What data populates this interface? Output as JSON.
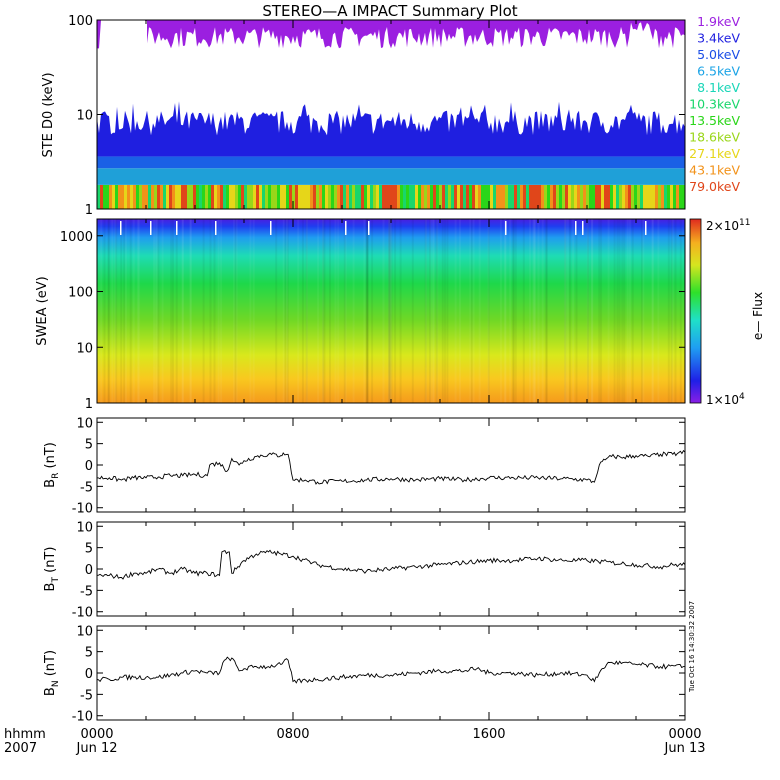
{
  "title": "STEREO—A IMPACT Summary Plot",
  "chart_data": [
    {
      "type": "heatmap",
      "name": "ste",
      "ylabel": "STE D0 (keV)",
      "yscale": "log",
      "ylim": [
        1,
        100
      ],
      "yticks": [
        {
          "v": 1,
          "label": "1"
        },
        {
          "v": 10,
          "label": "10"
        },
        {
          "v": 100,
          "label": "100"
        }
      ],
      "channels": [
        {
          "label": "1.9keV",
          "energy_keV": 1.9,
          "color": "#9b1fe0"
        },
        {
          "label": "3.4keV",
          "energy_keV": 3.4,
          "color": "#1f1fe0"
        },
        {
          "label": "5.0keV",
          "energy_keV": 5.0,
          "color": "#1a4de6"
        },
        {
          "label": "6.5keV",
          "energy_keV": 6.5,
          "color": "#1aa3e6"
        },
        {
          "label": "8.1keV",
          "energy_keV": 8.1,
          "color": "#19d6b8"
        },
        {
          "label": "10.3keV",
          "energy_keV": 10.3,
          "color": "#19d66b"
        },
        {
          "label": "13.5keV",
          "energy_keV": 13.5,
          "color": "#2ad619"
        },
        {
          "label": "18.6keV",
          "energy_keV": 18.6,
          "color": "#9ad619"
        },
        {
          "label": "27.1keV",
          "energy_keV": 27.1,
          "color": "#e6d619"
        },
        {
          "label": "43.1keV",
          "energy_keV": 43.1,
          "color": "#f2921a"
        },
        {
          "label": "79.0keV",
          "energy_keV": 79.0,
          "color": "#e0461a"
        }
      ]
    },
    {
      "type": "heatmap",
      "name": "swea",
      "ylabel": "SWEA (eV)",
      "yscale": "log",
      "ylim": [
        1,
        2000
      ],
      "yticks": [
        {
          "v": 1,
          "label": "1"
        },
        {
          "v": 10,
          "label": "10"
        },
        {
          "v": 100,
          "label": "100"
        },
        {
          "v": 1000,
          "label": "1000"
        }
      ],
      "colorbar": {
        "label": "e— Flux",
        "min": "1×10",
        "min_exp": "4",
        "max": "2×10",
        "max_exp": "11"
      }
    },
    {
      "type": "line",
      "name": "br",
      "ylabel": "B",
      "ylabel_sub": "R",
      "ylabel_unit": "(nT)",
      "ylim": [
        -11,
        11
      ],
      "yticks": [
        {
          "v": 10,
          "label": "10"
        },
        {
          "v": 5,
          "label": "5"
        },
        {
          "v": 0,
          "label": "0"
        },
        {
          "v": -5,
          "label": "-5"
        },
        {
          "v": -10,
          "label": "-10"
        }
      ],
      "x_hours": [
        0,
        0.5,
        1,
        1.5,
        2,
        2.5,
        3,
        3.5,
        4,
        4.5,
        4.6,
        5.0,
        5.3,
        5.5,
        5.8,
        6.0,
        6.5,
        7.0,
        7.5,
        7.6,
        7.8,
        8.0,
        8.5,
        9,
        10,
        11,
        12,
        13,
        14,
        15,
        16,
        17,
        18,
        19,
        20,
        20.3,
        20.5,
        20.8,
        21,
        21.5,
        22,
        22.5,
        23,
        23.5,
        24
      ],
      "values": [
        -3,
        -3,
        -3.5,
        -3,
        -3,
        -2.8,
        -2.5,
        -2.5,
        -2.2,
        -2.5,
        0,
        0.5,
        -1.5,
        1.5,
        0,
        1,
        2,
        2.5,
        2.2,
        2.8,
        2.5,
        -3.5,
        -3.5,
        -4,
        -3.8,
        -3.5,
        -3.2,
        -3.5,
        -3.2,
        -3.5,
        -3,
        -3,
        -3,
        -3.2,
        -3.5,
        -4.0,
        0,
        1.5,
        2.0,
        1.8,
        2.2,
        2.0,
        2.5,
        2.5,
        3
      ]
    },
    {
      "type": "line",
      "name": "bt",
      "ylabel": "B",
      "ylabel_sub": "T",
      "ylabel_unit": "(nT)",
      "ylim": [
        -11,
        11
      ],
      "yticks": [
        {
          "v": 10,
          "label": "10"
        },
        {
          "v": 5,
          "label": "5"
        },
        {
          "v": 0,
          "label": "0"
        },
        {
          "v": -5,
          "label": "-5"
        },
        {
          "v": -10,
          "label": "-10"
        }
      ],
      "x_hours": [
        0,
        0.5,
        1,
        1.5,
        2,
        2.5,
        3,
        3.5,
        4,
        4.5,
        5.0,
        5.1,
        5.4,
        5.5,
        6.0,
        6.5,
        7.0,
        7.5,
        8,
        9,
        10,
        11,
        12,
        13,
        14,
        15,
        16,
        17,
        18,
        19,
        20,
        21,
        22,
        23,
        23.5,
        24
      ],
      "values": [
        -1.5,
        -1.5,
        -2,
        -1,
        -1,
        0,
        -1,
        0,
        -1,
        -1,
        -1.5,
        4,
        4,
        -1,
        2,
        3.5,
        4,
        3.5,
        3,
        1,
        0,
        -0.5,
        0,
        0.5,
        1,
        1.5,
        2,
        2,
        2.5,
        2,
        2,
        1.5,
        1,
        0.5,
        1,
        1
      ]
    },
    {
      "type": "line",
      "name": "bn",
      "ylabel": "B",
      "ylabel_sub": "N",
      "ylabel_unit": "(nT)",
      "ylim": [
        -11,
        11
      ],
      "yticks": [
        {
          "v": 10,
          "label": "10"
        },
        {
          "v": 5,
          "label": "5"
        },
        {
          "v": 0,
          "label": "0"
        },
        {
          "v": -5,
          "label": "-5"
        },
        {
          "v": -10,
          "label": "-10"
        }
      ],
      "x_hours": [
        0,
        0.5,
        1,
        1.5,
        2,
        2.5,
        3,
        3.5,
        4,
        4.5,
        5.0,
        5.2,
        5.5,
        5.8,
        6.0,
        6.5,
        7.0,
        7.5,
        7.6,
        7.8,
        8,
        9,
        10,
        11,
        12,
        13,
        14,
        15,
        15.5,
        16,
        17,
        18,
        19,
        20,
        20.3,
        20.5,
        20.8,
        21,
        22,
        23,
        24
      ],
      "values": [
        -1.5,
        -1.5,
        -1,
        -1,
        -1,
        -1,
        -0.5,
        0,
        0.5,
        0,
        0,
        3,
        3.5,
        0.5,
        1,
        1.5,
        1.5,
        2,
        2.5,
        3,
        -2,
        -1.5,
        -1,
        -0.5,
        -0.5,
        0,
        0.5,
        0.5,
        1,
        0,
        0,
        -0.5,
        0,
        -0.5,
        -2.0,
        0,
        2.0,
        2.5,
        2,
        1.5,
        1.5
      ]
    }
  ],
  "x_axis": {
    "label_row1": "hhmm",
    "label_row2": "2007",
    "ticks": [
      {
        "v": 0,
        "label": "0000",
        "sub": "Jun 12"
      },
      {
        "v": 8,
        "label": "0800",
        "sub": ""
      },
      {
        "v": 16,
        "label": "1600",
        "sub": ""
      },
      {
        "v": 24,
        "label": "0000",
        "sub": "Jun 13"
      }
    ]
  },
  "timestamp": "Tue Oct 16 14:30:32 2007",
  "colors": {
    "purple": "#9b1fe0",
    "blue": "#1f1fe0",
    "axis": "#000000"
  }
}
